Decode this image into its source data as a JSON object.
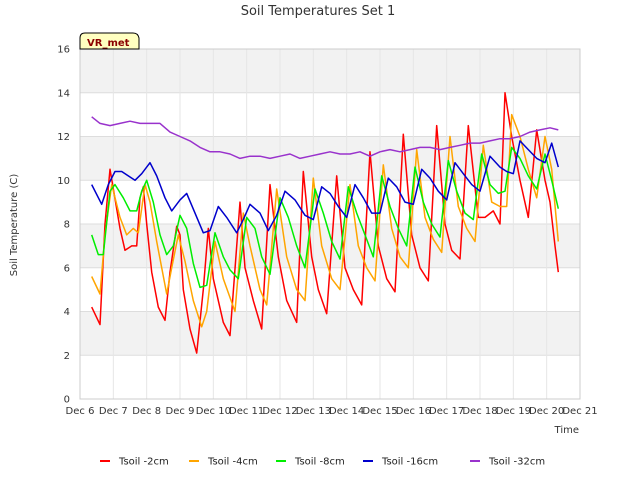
{
  "chart_data": {
    "type": "line",
    "title": "Soil Temperatures Set 1",
    "xlabel": "Time",
    "ylabel": "Soil Temperature (C)",
    "badge": "VR_met",
    "ylim": [
      0,
      16
    ],
    "xlim": [
      6,
      21
    ],
    "yticks": [
      0,
      2,
      4,
      6,
      8,
      10,
      12,
      14,
      16
    ],
    "xticks": [
      {
        "value": 6,
        "label": "Dec 6"
      },
      {
        "value": 7,
        "label": "Dec 7"
      },
      {
        "value": 8,
        "label": "Dec 8"
      },
      {
        "value": 9,
        "label": "Dec 9"
      },
      {
        "value": 10,
        "label": "Dec 10"
      },
      {
        "value": 11,
        "label": "Dec 11"
      },
      {
        "value": 12,
        "label": "Dec 12"
      },
      {
        "value": 13,
        "label": "Dec 13"
      },
      {
        "value": 14,
        "label": "Dec 14"
      },
      {
        "value": 15,
        "label": "Dec 15"
      },
      {
        "value": 16,
        "label": "Dec 16"
      },
      {
        "value": 17,
        "label": "Dec 17"
      },
      {
        "value": 18,
        "label": "Dec 18"
      },
      {
        "value": 19,
        "label": "Dec 19"
      },
      {
        "value": 20,
        "label": "Dec 20"
      },
      {
        "value": 21,
        "label": "Dec 21"
      }
    ],
    "grid": true,
    "background_bands": true,
    "legend_position": "bottom",
    "series": [
      {
        "name": "Tsoil -2cm",
        "color": "#ff0000",
        "x": [
          6.35,
          6.6,
          6.75,
          6.9,
          7.2,
          7.35,
          7.55,
          7.7,
          7.8,
          7.9,
          8.0,
          8.15,
          8.35,
          8.55,
          8.7,
          8.9,
          9.0,
          9.1,
          9.3,
          9.5,
          9.7,
          9.85,
          10.0,
          10.3,
          10.5,
          10.8,
          10.95,
          11.2,
          11.45,
          11.7,
          11.95,
          12.2,
          12.5,
          12.7,
          12.95,
          13.15,
          13.4,
          13.7,
          13.95,
          14.2,
          14.45,
          14.7,
          14.95,
          15.2,
          15.45,
          15.7,
          15.95,
          16.2,
          16.45,
          16.7,
          16.95,
          17.15,
          17.4,
          17.65,
          17.95,
          18.15,
          18.4,
          18.6,
          18.75,
          18.95,
          19.2,
          19.45,
          19.7,
          19.95,
          20.1,
          20.25,
          20.35
        ],
        "values": [
          4.2,
          3.4,
          8.0,
          10.5,
          7.8,
          6.8,
          7.0,
          7.0,
          9.2,
          9.7,
          8.0,
          5.8,
          4.2,
          3.6,
          5.8,
          7.9,
          7.5,
          5.0,
          3.2,
          2.1,
          5.0,
          7.8,
          5.5,
          3.5,
          2.9,
          9.0,
          6.0,
          4.5,
          3.2,
          9.8,
          6.5,
          4.5,
          3.5,
          10.4,
          6.5,
          5.0,
          3.9,
          10.2,
          6.0,
          5.0,
          4.3,
          11.3,
          7.0,
          5.5,
          4.9,
          12.1,
          7.5,
          6.0,
          5.4,
          12.5,
          8.0,
          6.8,
          6.4,
          12.5,
          8.3,
          8.3,
          8.6,
          8.0,
          14.0,
          12.0,
          10.0,
          8.3,
          12.3,
          10.0,
          9.0,
          7.0,
          5.8
        ]
      },
      {
        "name": "Tsoil -4cm",
        "color": "#ffa500",
        "x": [
          6.35,
          6.6,
          6.75,
          6.95,
          7.2,
          7.4,
          7.6,
          7.75,
          7.95,
          8.1,
          8.3,
          8.6,
          8.75,
          8.95,
          9.15,
          9.4,
          9.65,
          9.8,
          10.05,
          10.3,
          10.65,
          10.9,
          11.1,
          11.4,
          11.6,
          11.9,
          12.2,
          12.5,
          12.75,
          13.0,
          13.25,
          13.55,
          13.8,
          14.1,
          14.35,
          14.6,
          14.85,
          15.1,
          15.35,
          15.6,
          15.85,
          16.1,
          16.35,
          16.6,
          16.85,
          17.1,
          17.35,
          17.6,
          17.85,
          18.1,
          18.35,
          18.6,
          18.8,
          18.95,
          19.2,
          19.45,
          19.7,
          19.95,
          20.15,
          20.35
        ],
        "values": [
          5.6,
          4.8,
          7.5,
          9.8,
          8.3,
          7.5,
          7.8,
          7.6,
          9.8,
          9.0,
          7.2,
          4.8,
          6.0,
          7.5,
          6.3,
          4.5,
          3.3,
          4.0,
          7.2,
          5.5,
          4.0,
          8.5,
          7.0,
          5.0,
          4.3,
          9.6,
          6.5,
          5.0,
          4.5,
          10.1,
          7.0,
          5.5,
          5.0,
          9.8,
          7.0,
          6.0,
          5.4,
          10.7,
          7.8,
          6.5,
          6.0,
          11.4,
          8.3,
          7.3,
          6.7,
          12.0,
          8.8,
          7.8,
          7.2,
          11.6,
          9.0,
          8.8,
          8.8,
          13.0,
          12.0,
          10.5,
          9.2,
          12.0,
          10.5,
          7.2
        ]
      },
      {
        "name": "Tsoil -8cm",
        "color": "#00ee00",
        "x": [
          6.35,
          6.55,
          6.7,
          6.9,
          7.05,
          7.3,
          7.5,
          7.7,
          7.85,
          8.0,
          8.2,
          8.4,
          8.6,
          8.8,
          9.0,
          9.2,
          9.4,
          9.6,
          9.8,
          10.05,
          10.3,
          10.5,
          10.75,
          11.0,
          11.25,
          11.45,
          11.7,
          12.0,
          12.25,
          12.5,
          12.75,
          13.05,
          13.3,
          13.55,
          13.8,
          14.05,
          14.3,
          14.55,
          14.8,
          15.05,
          15.3,
          15.55,
          15.8,
          16.05,
          16.3,
          16.55,
          16.8,
          17.05,
          17.3,
          17.55,
          17.8,
          18.05,
          18.3,
          18.55,
          18.75,
          18.95,
          19.2,
          19.45,
          19.7,
          19.95,
          20.15,
          20.35
        ],
        "values": [
          7.5,
          6.6,
          6.6,
          9.5,
          9.8,
          9.2,
          8.6,
          8.6,
          9.5,
          10.0,
          9.0,
          7.5,
          6.6,
          7.0,
          8.4,
          7.8,
          6.2,
          5.1,
          5.2,
          7.6,
          6.5,
          5.9,
          5.5,
          8.3,
          7.8,
          6.5,
          5.7,
          9.2,
          8.3,
          7.0,
          6.0,
          9.6,
          8.5,
          7.2,
          6.4,
          9.7,
          8.5,
          7.5,
          6.5,
          10.2,
          8.8,
          7.8,
          7.0,
          10.6,
          9.0,
          8.0,
          7.4,
          10.9,
          9.5,
          8.5,
          8.2,
          11.2,
          9.8,
          9.4,
          9.5,
          11.5,
          11.0,
          10.2,
          9.6,
          11.2,
          10.0,
          8.7
        ]
      },
      {
        "name": "Tsoil -16cm",
        "color": "#0000cc",
        "x": [
          6.35,
          6.65,
          6.85,
          7.05,
          7.25,
          7.45,
          7.65,
          7.85,
          8.1,
          8.3,
          8.55,
          8.75,
          9.0,
          9.2,
          9.45,
          9.7,
          9.9,
          10.15,
          10.4,
          10.7,
          10.9,
          11.1,
          11.4,
          11.65,
          11.9,
          12.15,
          12.45,
          12.75,
          13.0,
          13.25,
          13.5,
          13.75,
          14.0,
          14.25,
          14.5,
          14.75,
          15.0,
          15.25,
          15.5,
          15.75,
          16.0,
          16.25,
          16.5,
          16.75,
          17.0,
          17.25,
          17.5,
          17.75,
          18.0,
          18.3,
          18.6,
          18.8,
          19.0,
          19.2,
          19.45,
          19.7,
          19.95,
          20.15,
          20.35
        ],
        "values": [
          9.8,
          8.9,
          9.8,
          10.4,
          10.4,
          10.2,
          10.0,
          10.3,
          10.8,
          10.2,
          9.2,
          8.6,
          9.1,
          9.4,
          8.5,
          7.6,
          7.7,
          8.8,
          8.3,
          7.6,
          8.2,
          8.9,
          8.5,
          7.7,
          8.4,
          9.5,
          9.1,
          8.4,
          8.2,
          9.7,
          9.4,
          8.8,
          8.3,
          9.8,
          9.2,
          8.5,
          8.5,
          10.1,
          9.7,
          9.0,
          8.9,
          10.5,
          10.1,
          9.5,
          9.1,
          10.8,
          10.3,
          9.8,
          9.5,
          11.1,
          10.6,
          10.4,
          10.3,
          11.8,
          11.4,
          11.0,
          10.8,
          11.7,
          10.6
        ]
      },
      {
        "name": "Tsoil -32cm",
        "color": "#9932cc",
        "x": [
          6.35,
          6.6,
          6.9,
          7.2,
          7.5,
          7.8,
          8.1,
          8.4,
          8.7,
          9.0,
          9.3,
          9.6,
          9.9,
          10.2,
          10.5,
          10.8,
          11.1,
          11.4,
          11.7,
          12.0,
          12.3,
          12.6,
          12.9,
          13.2,
          13.5,
          13.8,
          14.1,
          14.4,
          14.7,
          15.0,
          15.3,
          15.6,
          15.9,
          16.2,
          16.5,
          16.8,
          17.1,
          17.4,
          17.7,
          18.0,
          18.3,
          18.6,
          18.9,
          19.2,
          19.5,
          19.8,
          20.1,
          20.35
        ],
        "values": [
          12.9,
          12.6,
          12.5,
          12.6,
          12.7,
          12.6,
          12.6,
          12.6,
          12.2,
          12.0,
          11.8,
          11.5,
          11.3,
          11.3,
          11.2,
          11.0,
          11.1,
          11.1,
          11.0,
          11.1,
          11.2,
          11.0,
          11.1,
          11.2,
          11.3,
          11.2,
          11.2,
          11.3,
          11.1,
          11.3,
          11.4,
          11.3,
          11.4,
          11.5,
          11.5,
          11.4,
          11.5,
          11.6,
          11.7,
          11.7,
          11.8,
          11.9,
          11.9,
          12.0,
          12.2,
          12.3,
          12.4,
          12.3
        ]
      }
    ]
  }
}
